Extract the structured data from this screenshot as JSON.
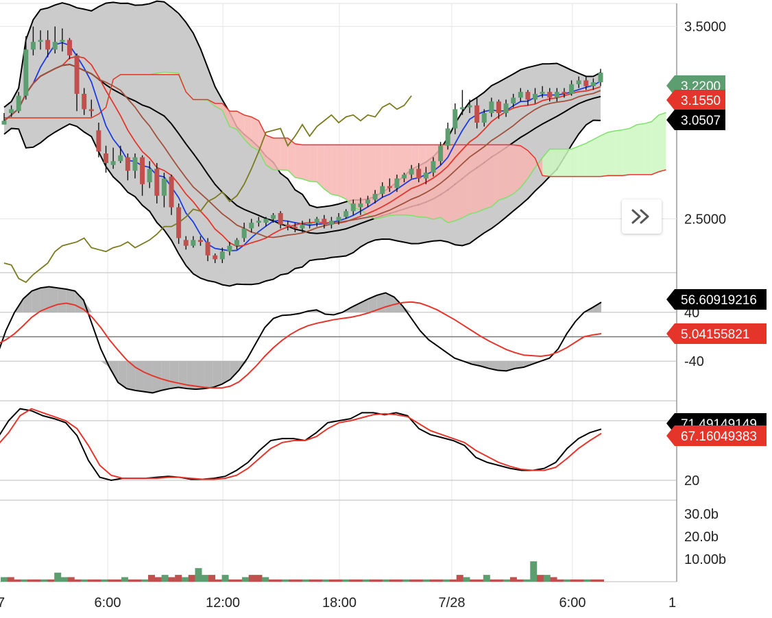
{
  "chart_data": [
    {
      "type": "candlestick",
      "panel": "price",
      "y_ticks": [
        "3.5000",
        "2.5000"
      ],
      "ylim": [
        2.22,
        3.62
      ],
      "candles": [
        [
          2.99,
          3.01,
          3.0,
          3.05
        ],
        [
          3.05,
          3.07,
          3.03,
          3.09
        ],
        [
          3.06,
          3.14,
          3.05,
          3.16
        ],
        [
          3.14,
          3.38,
          3.12,
          3.45
        ],
        [
          3.38,
          3.42,
          3.35,
          3.5
        ],
        [
          3.42,
          3.43,
          3.38,
          3.48
        ],
        [
          3.43,
          3.38,
          3.34,
          3.48
        ],
        [
          3.38,
          3.42,
          3.36,
          3.5
        ],
        [
          3.42,
          3.43,
          3.37,
          3.49
        ],
        [
          3.43,
          3.35,
          3.33,
          3.44
        ],
        [
          3.35,
          3.15,
          3.06,
          3.36
        ],
        [
          3.15,
          3.07,
          3.04,
          3.18
        ],
        [
          3.07,
          3.06,
          3.03,
          3.12
        ],
        [
          2.96,
          2.85,
          2.82,
          3.0
        ],
        [
          2.84,
          2.79,
          2.74,
          2.88
        ],
        [
          2.78,
          2.8,
          2.76,
          2.87
        ],
        [
          2.8,
          2.83,
          2.79,
          2.88
        ],
        [
          2.82,
          2.75,
          2.7,
          2.84
        ],
        [
          2.75,
          2.82,
          2.71,
          2.84
        ],
        [
          2.82,
          2.68,
          2.62,
          2.83
        ],
        [
          2.69,
          2.76,
          2.66,
          2.8
        ],
        [
          2.76,
          2.62,
          2.58,
          2.79
        ],
        [
          2.62,
          2.71,
          2.56,
          2.74
        ],
        [
          2.72,
          2.56,
          2.52,
          2.73
        ],
        [
          2.56,
          2.4,
          2.37,
          2.58
        ],
        [
          2.39,
          2.36,
          2.34,
          2.41
        ],
        [
          2.36,
          2.39,
          2.35,
          2.41
        ],
        [
          2.39,
          2.38,
          2.36,
          2.41
        ],
        [
          2.38,
          2.31,
          2.28,
          2.4
        ],
        [
          2.31,
          2.29,
          2.27,
          2.32
        ],
        [
          2.29,
          2.33,
          2.27,
          2.35
        ],
        [
          2.33,
          2.36,
          2.31,
          2.38
        ],
        [
          2.36,
          2.39,
          2.34,
          2.4
        ],
        [
          2.4,
          2.45,
          2.38,
          2.48
        ],
        [
          2.45,
          2.48,
          2.43,
          2.5
        ],
        [
          2.48,
          2.49,
          2.46,
          2.51
        ],
        [
          2.48,
          2.5,
          2.46,
          2.51
        ],
        [
          2.5,
          2.52,
          2.48,
          2.53
        ],
        [
          2.53,
          2.47,
          2.45,
          2.54
        ],
        [
          2.47,
          2.46,
          2.44,
          2.49
        ],
        [
          2.46,
          2.45,
          2.43,
          2.48
        ],
        [
          2.45,
          2.47,
          2.43,
          2.49
        ],
        [
          2.47,
          2.48,
          2.45,
          2.5
        ],
        [
          2.48,
          2.5,
          2.46,
          2.51
        ],
        [
          2.5,
          2.47,
          2.45,
          2.52
        ],
        [
          2.47,
          2.49,
          2.45,
          2.51
        ],
        [
          2.49,
          2.51,
          2.47,
          2.53
        ],
        [
          2.51,
          2.54,
          2.5,
          2.55
        ],
        [
          2.54,
          2.58,
          2.52,
          2.6
        ],
        [
          2.56,
          2.58,
          2.52,
          2.61
        ],
        [
          2.58,
          2.6,
          2.56,
          2.62
        ],
        [
          2.6,
          2.63,
          2.58,
          2.65
        ],
        [
          2.63,
          2.67,
          2.61,
          2.69
        ],
        [
          2.67,
          2.66,
          2.64,
          2.71
        ],
        [
          2.66,
          2.71,
          2.64,
          2.73
        ],
        [
          2.71,
          2.73,
          2.69,
          2.74
        ],
        [
          2.73,
          2.76,
          2.71,
          2.78
        ],
        [
          2.76,
          2.71,
          2.69,
          2.79
        ],
        [
          2.71,
          2.74,
          2.68,
          2.77
        ],
        [
          2.74,
          2.8,
          2.72,
          2.82
        ],
        [
          2.8,
          2.88,
          2.78,
          2.9
        ],
        [
          2.88,
          2.97,
          2.86,
          3.0
        ],
        [
          2.97,
          3.07,
          2.94,
          3.1
        ],
        [
          3.07,
          3.08,
          3.04,
          3.17
        ],
        [
          3.08,
          3.09,
          3.05,
          3.12
        ],
        [
          3.09,
          3.0,
          2.97,
          3.13
        ],
        [
          3.0,
          3.05,
          2.98,
          3.07
        ],
        [
          3.05,
          3.11,
          3.03,
          3.13
        ],
        [
          3.11,
          3.05,
          3.02,
          3.12
        ],
        [
          3.05,
          3.1,
          3.03,
          3.12
        ],
        [
          3.1,
          3.13,
          3.08,
          3.15
        ],
        [
          3.13,
          3.16,
          3.11,
          3.18
        ],
        [
          3.16,
          3.12,
          3.09,
          3.17
        ],
        [
          3.12,
          3.15,
          3.1,
          3.18
        ],
        [
          3.15,
          3.16,
          3.13,
          3.19
        ],
        [
          3.16,
          3.13,
          3.11,
          3.18
        ],
        [
          3.13,
          3.16,
          3.11,
          3.18
        ],
        [
          3.16,
          3.15,
          3.13,
          3.18
        ],
        [
          3.15,
          3.2,
          3.14,
          3.22
        ],
        [
          3.2,
          3.22,
          3.18,
          3.24
        ],
        [
          3.22,
          3.19,
          3.17,
          3.24
        ],
        [
          3.19,
          3.21,
          3.17,
          3.23
        ],
        [
          3.21,
          3.26,
          3.19,
          3.28
        ]
      ],
      "overlays": [
        "bollinger-bands",
        "ichimoku-cloud",
        "moving-averages"
      ],
      "last_price_labels": [
        {
          "text": "3.2200",
          "color": "#5d9e70"
        },
        {
          "text": "3.1550",
          "color": "#e5352b"
        },
        {
          "text": "3.0507",
          "color": "#000000"
        }
      ]
    },
    {
      "type": "line",
      "panel": "oscillator-1",
      "y_ticks": [
        "40",
        "-40"
      ],
      "ylim": [
        -105,
        105
      ],
      "series": [
        {
          "color": "#000000",
          "values": [
            -30,
            10,
            40,
            62,
            75,
            80,
            82,
            80,
            78,
            75,
            60,
            20,
            -20,
            -50,
            -75,
            -85,
            -88,
            -90,
            -92,
            -88,
            -85,
            -83,
            -85,
            -86,
            -85,
            -83,
            -78,
            -70,
            -55,
            -35,
            -10,
            15,
            30,
            35,
            36,
            38,
            42,
            44,
            37,
            36,
            40,
            48,
            55,
            62,
            68,
            72,
            65,
            50,
            30,
            10,
            -5,
            -15,
            -25,
            -35,
            -40,
            -45,
            -48,
            -52,
            -55,
            -56,
            -52,
            -50,
            -45,
            -40,
            -35,
            -20,
            5,
            25,
            40,
            48,
            56.6
          ]
        },
        {
          "color": "#e5352b",
          "values": [
            -12,
            -5,
            5,
            18,
            32,
            42,
            48,
            53,
            55,
            52,
            45,
            32,
            15,
            -5,
            -22,
            -38,
            -50,
            -58,
            -64,
            -69,
            -73,
            -76,
            -79,
            -81,
            -83,
            -84,
            -84,
            -81,
            -74,
            -62,
            -48,
            -32,
            -18,
            -6,
            4,
            12,
            18,
            22,
            25,
            28,
            30,
            32,
            35,
            39,
            44,
            49,
            53,
            56,
            57,
            55,
            50,
            44,
            36,
            28,
            19,
            10,
            1,
            -7,
            -14,
            -21,
            -26,
            -30,
            -31,
            -32,
            -30,
            -25,
            -18,
            -9,
            0,
            3,
            5.04
          ]
        }
      ]
    },
    {
      "type": "line",
      "panel": "oscillator-2",
      "y_ticks": [
        "20"
      ],
      "ylim": [
        0,
        100
      ],
      "series": [
        {
          "color": "#000000",
          "values": [
            62,
            80,
            92,
            90,
            85,
            82,
            78,
            65,
            40,
            23,
            20,
            22,
            22,
            22,
            23,
            24,
            23,
            21,
            21,
            22,
            24,
            30,
            38,
            50,
            60,
            62,
            62,
            60,
            68,
            78,
            80,
            82,
            88,
            88,
            86,
            88,
            85,
            72,
            66,
            63,
            60,
            55,
            43,
            38,
            35,
            32,
            30,
            30,
            32,
            38,
            52,
            62,
            68,
            71.5
          ]
        },
        {
          "color": "#e5352b",
          "values": [
            55,
            68,
            85,
            92,
            88,
            84,
            80,
            72,
            55,
            35,
            25,
            22,
            22,
            22,
            22,
            23,
            23,
            22,
            21,
            21,
            22,
            25,
            32,
            42,
            52,
            58,
            60,
            60,
            64,
            72,
            78,
            80,
            83,
            86,
            87,
            86,
            84,
            77,
            70,
            66,
            62,
            58,
            50,
            44,
            38,
            34,
            31,
            30,
            30,
            33,
            42,
            52,
            60,
            67.16
          ]
        }
      ],
      "last_value_labels": [
        {
          "text": "71.49149149",
          "color": "#000000"
        },
        {
          "text": "67.16049383",
          "color": "#e5352b"
        }
      ]
    },
    {
      "type": "bar",
      "panel": "volume",
      "y_ticks": [
        "30.0b",
        "20.0b",
        "10.00b"
      ],
      "ylim": [
        0,
        36
      ],
      "values": [
        2,
        2,
        1,
        1,
        1,
        1,
        1,
        1,
        4,
        2,
        2,
        1,
        1,
        1,
        1,
        1,
        1,
        1,
        2,
        1,
        1,
        1,
        3,
        2,
        3,
        2,
        3,
        2,
        3,
        6,
        3,
        3,
        1,
        3,
        1,
        1,
        2,
        3,
        3,
        2,
        1,
        1,
        1,
        1,
        1,
        1,
        1,
        1,
        1,
        1,
        1,
        1,
        1,
        1,
        1,
        1,
        1,
        1,
        1,
        1,
        1,
        1,
        1,
        1,
        1,
        1,
        1,
        1,
        3,
        2,
        1,
        1,
        3,
        1,
        1,
        1,
        2,
        1,
        1,
        9,
        3,
        3,
        2,
        1,
        1,
        1,
        1,
        1,
        1,
        1
      ]
    }
  ],
  "x_axis": {
    "ticks": [
      "6:00",
      "12:00",
      "18:00",
      "7/28",
      "6:00"
    ],
    "cut_left": "7",
    "cut_right": "1"
  },
  "labels_osc1": [
    {
      "text": "56.60919216",
      "color": "#000000"
    },
    {
      "text": "5.04155821",
      "color": "#e5352b"
    }
  ],
  "colors": {
    "up": "#5d9e70",
    "down": "#c0504d",
    "grid": "#e5e5e5",
    "cloud_up": "#ccf7c0",
    "cloud_down": "#f7b6b3"
  },
  "scroll_button_icon": "double-chevron-right-icon"
}
